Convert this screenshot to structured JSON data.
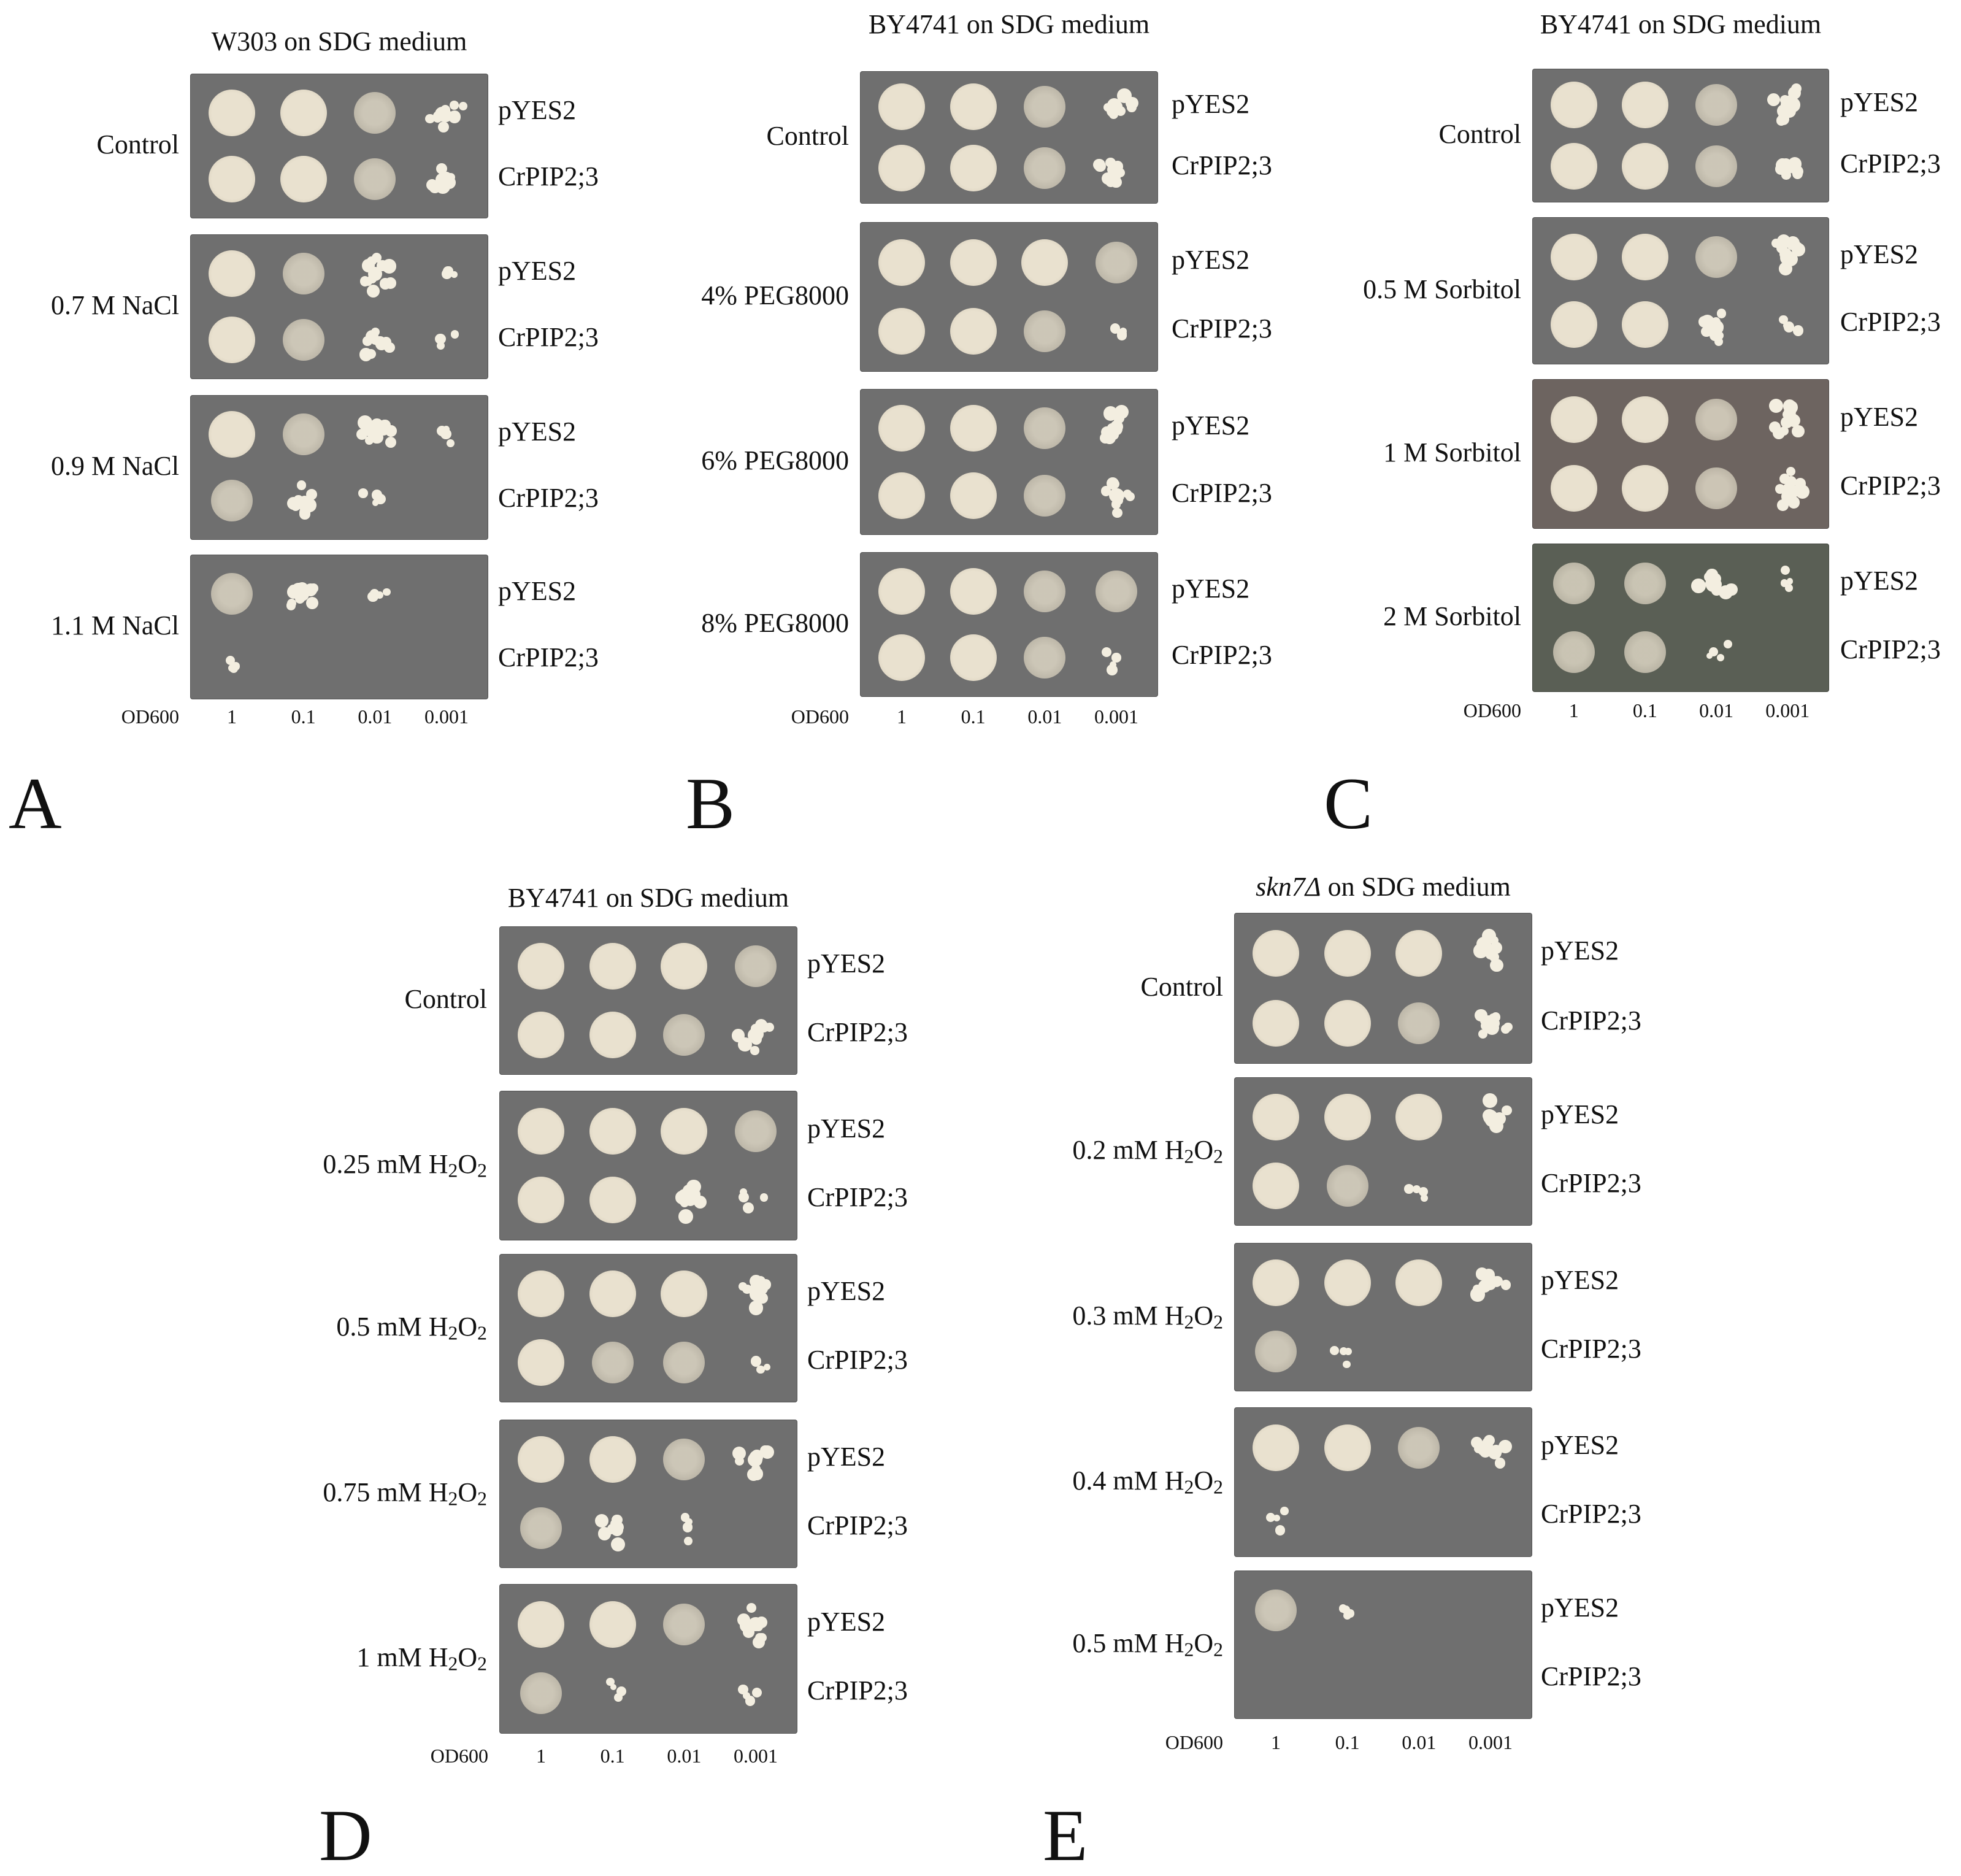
{
  "panels": [
    {
      "letter": "A",
      "title": "W303 on SDG medium",
      "od_label": "OD600",
      "dilutions": [
        "1",
        "0.1",
        "0.01",
        "0.001"
      ],
      "strains": [
        "pYES2",
        "CrPIP2;3"
      ],
      "rows": [
        {
          "condition": "Control",
          "growth": [
            [
              4,
              4,
              3,
              2
            ],
            [
              4,
              4,
              3,
              2
            ]
          ]
        },
        {
          "condition": "0.7 M NaCl",
          "growth": [
            [
              4,
              3,
              2,
              1
            ],
            [
              4,
              3,
              2,
              1
            ]
          ]
        },
        {
          "condition": "0.9 M NaCl",
          "growth": [
            [
              4,
              3,
              2,
              1
            ],
            [
              3,
              2,
              1,
              0
            ]
          ]
        },
        {
          "condition": "1.1 M NaCl",
          "growth": [
            [
              3,
              2,
              1,
              0
            ],
            [
              1,
              0,
              0,
              0
            ]
          ]
        }
      ]
    },
    {
      "letter": "B",
      "title": "BY4741 on SDG medium",
      "od_label": "OD600",
      "dilutions": [
        "1",
        "0.1",
        "0.01",
        "0.001"
      ],
      "strains": [
        "pYES2",
        "CrPIP2;3"
      ],
      "rows": [
        {
          "condition": "Control",
          "growth": [
            [
              4,
              4,
              3,
              2
            ],
            [
              4,
              4,
              3,
              2
            ]
          ]
        },
        {
          "condition": "4% PEG8000",
          "growth": [
            [
              4,
              4,
              4,
              3
            ],
            [
              4,
              4,
              3,
              1
            ]
          ]
        },
        {
          "condition": "6% PEG8000",
          "growth": [
            [
              4,
              4,
              3,
              2
            ],
            [
              4,
              4,
              3,
              2
            ]
          ]
        },
        {
          "condition": "8% PEG8000",
          "growth": [
            [
              4,
              4,
              3,
              3
            ],
            [
              4,
              4,
              3,
              1
            ]
          ]
        }
      ]
    },
    {
      "letter": "C",
      "title": "BY4741 on SDG medium",
      "od_label": "OD600",
      "dilutions": [
        "1",
        "0.1",
        "0.01",
        "0.001"
      ],
      "strains": [
        "pYES2",
        "CrPIP2;3"
      ],
      "rows": [
        {
          "condition": "Control",
          "growth": [
            [
              4,
              4,
              3,
              2
            ],
            [
              4,
              4,
              3,
              2
            ]
          ]
        },
        {
          "condition": "0.5 M Sorbitol",
          "growth": [
            [
              4,
              4,
              3,
              2
            ],
            [
              4,
              4,
              2,
              1
            ]
          ]
        },
        {
          "condition": "1 M Sorbitol",
          "growth": [
            [
              4,
              4,
              3,
              2
            ],
            [
              4,
              4,
              3,
              2
            ]
          ]
        },
        {
          "condition": "2 M Sorbitol",
          "growth": [
            [
              3,
              3,
              2,
              1
            ],
            [
              3,
              3,
              1,
              0
            ]
          ]
        }
      ]
    },
    {
      "letter": "D",
      "title": "BY4741 on SDG medium",
      "od_label": "OD600",
      "dilutions": [
        "1",
        "0.1",
        "0.01",
        "0.001"
      ],
      "strains": [
        "pYES2",
        "CrPIP2;3"
      ],
      "rows": [
        {
          "condition": "Control",
          "growth": [
            [
              4,
              4,
              4,
              3
            ],
            [
              4,
              4,
              3,
              2
            ]
          ]
        },
        {
          "condition": "0.25 mM H2O2",
          "growth": [
            [
              4,
              4,
              4,
              3
            ],
            [
              4,
              4,
              2,
              1
            ]
          ]
        },
        {
          "condition": "0.5 mM H2O2",
          "growth": [
            [
              4,
              4,
              4,
              2
            ],
            [
              4,
              3,
              3,
              1
            ]
          ]
        },
        {
          "condition": "0.75 mM H2O2",
          "growth": [
            [
              4,
              4,
              3,
              2
            ],
            [
              3,
              2,
              1,
              0
            ]
          ]
        },
        {
          "condition": "1 mM H2O2",
          "growth": [
            [
              4,
              4,
              3,
              2
            ],
            [
              3,
              1,
              0,
              1
            ]
          ]
        }
      ]
    },
    {
      "letter": "E",
      "title": "skn7Δ on SDG medium",
      "od_label": "OD600",
      "dilutions": [
        "1",
        "0.1",
        "0.01",
        "0.001"
      ],
      "strains": [
        "pYES2",
        "CrPIP2;3"
      ],
      "rows": [
        {
          "condition": "Control",
          "growth": [
            [
              4,
              4,
              4,
              2
            ],
            [
              4,
              4,
              3,
              2
            ]
          ]
        },
        {
          "condition": "0.2 mM H2O2",
          "growth": [
            [
              4,
              4,
              4,
              2
            ],
            [
              4,
              3,
              1,
              0
            ]
          ]
        },
        {
          "condition": "0.3 mM H2O2",
          "growth": [
            [
              4,
              4,
              4,
              2
            ],
            [
              3,
              1,
              0,
              0
            ]
          ]
        },
        {
          "condition": "0.4 mM H2O2",
          "growth": [
            [
              4,
              4,
              3,
              2
            ],
            [
              1,
              0,
              0,
              0
            ]
          ]
        },
        {
          "condition": "0.5 mM H2O2",
          "growth": [
            [
              3,
              1,
              0,
              0
            ],
            [
              0,
              0,
              0,
              0
            ]
          ]
        }
      ]
    }
  ],
  "colors": {
    "plate": "#6f6f6f",
    "plate_dark": "#5f5f5f",
    "spot": "#e9e1cf",
    "spot_edge": "#cfc6b2",
    "colony": "#f3eee0"
  }
}
